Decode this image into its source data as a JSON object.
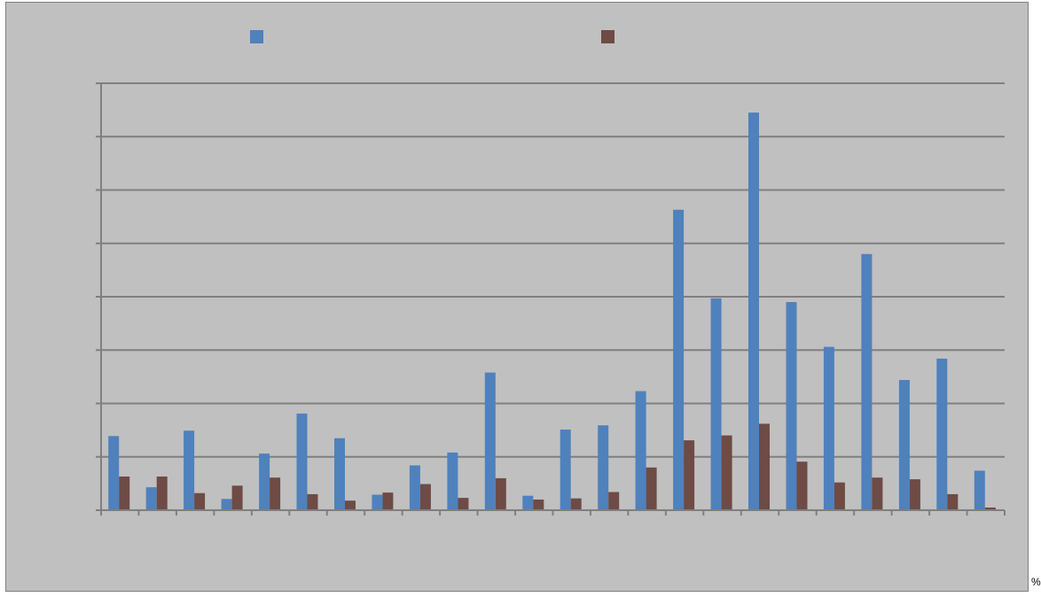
{
  "chart_data": {
    "type": "bar",
    "title": "",
    "xlabel": "",
    "ylabel": "",
    "ylim": [
      0,
      8
    ],
    "grid": true,
    "legend": "top",
    "categories": [
      "",
      "",
      "",
      "",
      "",
      "",
      "",
      "",
      "",
      "",
      "",
      "",
      "",
      "",
      "",
      "",
      "",
      "",
      "",
      "",
      "",
      "",
      "",
      ""
    ],
    "series": [
      {
        "color": "#4f81bd",
        "values": [
          1.39,
          0.43,
          1.49,
          0.21,
          1.06,
          1.81,
          1.35,
          0.29,
          0.84,
          1.08,
          2.58,
          0.27,
          1.51,
          1.59,
          2.23,
          5.63,
          3.97,
          7.45,
          3.9,
          3.06,
          4.8,
          2.44,
          2.84,
          0.74
        ]
      },
      {
        "color": "#6e4b45",
        "values": [
          0.63,
          0.63,
          0.32,
          0.46,
          0.61,
          0.3,
          0.18,
          0.33,
          0.49,
          0.23,
          0.6,
          0.2,
          0.22,
          0.34,
          0.8,
          1.31,
          1.4,
          1.62,
          0.91,
          0.52,
          0.61,
          0.58,
          0.3,
          0.05
        ]
      }
    ]
  },
  "corner_mark": "%"
}
